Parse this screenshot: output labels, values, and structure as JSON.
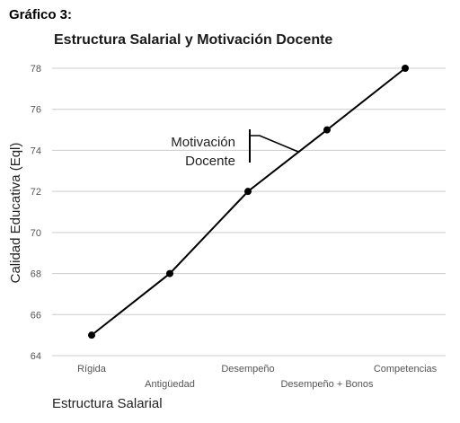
{
  "figure_label": "Gráfico 3:",
  "chart_data": {
    "type": "line",
    "title": "Estructura Salarial y Motivación Docente",
    "xlabel": "Estructura Salarial",
    "ylabel": "Calidad Educativa (Eql)",
    "categories": [
      "Rígida",
      "Antigüedad",
      "Desempeño",
      "Desempeño + Bonos",
      "Competencias"
    ],
    "values": [
      65,
      68,
      72,
      75,
      78
    ],
    "ylim": [
      64,
      78
    ],
    "yticks": [
      64,
      66,
      68,
      70,
      72,
      74,
      76,
      78
    ],
    "grid": "horizontal",
    "annotation": {
      "text_line1": "Motivación",
      "text_line2": "Docente"
    },
    "colors": {
      "line": "#000000",
      "grid": "#cccccc",
      "axis_text": "#555555"
    }
  }
}
